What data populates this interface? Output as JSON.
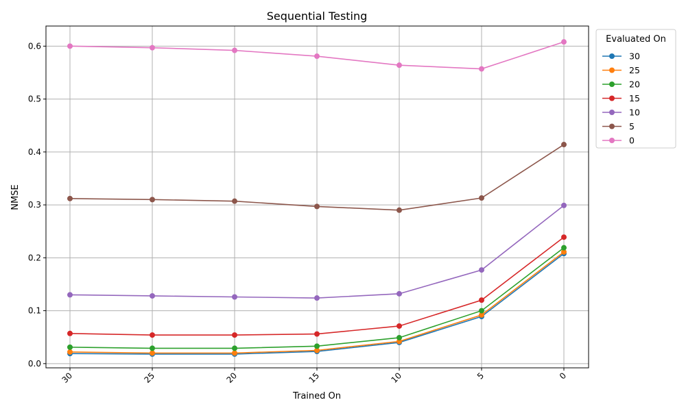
{
  "chart_data": {
    "type": "line",
    "title": "Sequential Testing",
    "xlabel": "Trained On",
    "ylabel": "NMSE",
    "categories": [
      "30",
      "25",
      "20",
      "15",
      "10",
      "5",
      "0"
    ],
    "ylim": [
      -0.008,
      0.638
    ],
    "yticks": [
      "0.0",
      "0.1",
      "0.2",
      "0.3",
      "0.4",
      "0.5",
      "0.6"
    ],
    "grid": true,
    "legend": {
      "title": "Evaluated On",
      "placement": "outside-top-right"
    },
    "series": [
      {
        "name": "30",
        "color": "#1f77b4",
        "values": [
          0.019,
          0.018,
          0.018,
          0.023,
          0.04,
          0.089,
          0.208
        ]
      },
      {
        "name": "25",
        "color": "#ff7f0e",
        "values": [
          0.022,
          0.02,
          0.02,
          0.025,
          0.042,
          0.092,
          0.211
        ]
      },
      {
        "name": "20",
        "color": "#2ca02c",
        "values": [
          0.031,
          0.029,
          0.029,
          0.033,
          0.049,
          0.1,
          0.219
        ]
      },
      {
        "name": "15",
        "color": "#d62728",
        "values": [
          0.057,
          0.054,
          0.054,
          0.056,
          0.071,
          0.12,
          0.239
        ]
      },
      {
        "name": "10",
        "color": "#9467bd",
        "values": [
          0.13,
          0.128,
          0.126,
          0.124,
          0.132,
          0.177,
          0.299
        ]
      },
      {
        "name": "5",
        "color": "#8c564b",
        "values": [
          0.312,
          0.31,
          0.307,
          0.297,
          0.29,
          0.313,
          0.414
        ]
      },
      {
        "name": "0",
        "color": "#e377c2",
        "values": [
          0.6,
          0.597,
          0.592,
          0.581,
          0.564,
          0.557,
          0.608
        ]
      }
    ]
  }
}
